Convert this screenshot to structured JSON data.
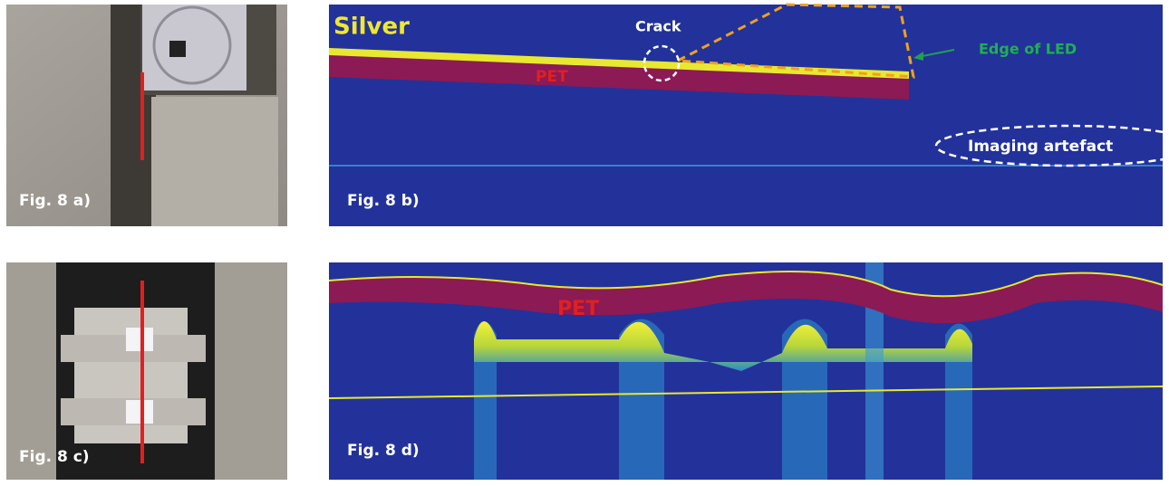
{
  "panels": [
    {
      "label": "Fig. 8 a)"
    },
    {
      "label": "Fig. 8 b)",
      "annotations": [
        "Silver",
        "Crack",
        "PET",
        "Edge of LED",
        "Imaging artefact"
      ]
    },
    {
      "label": "Fig. 8 c)"
    },
    {
      "label": "Fig. 8 d)",
      "annotations": [
        "PET"
      ]
    }
  ]
}
